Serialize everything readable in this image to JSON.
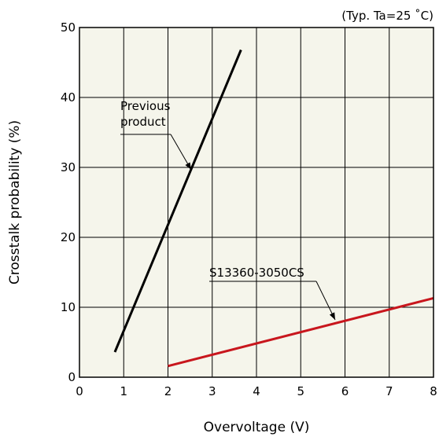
{
  "chart_data": {
    "type": "line",
    "note": "(Typ. Ta=25 ˚C)",
    "xlabel": "Overvoltage (V)",
    "ylabel": "Crosstalk probability (%)",
    "xlim": [
      0,
      8
    ],
    "ylim": [
      0,
      50
    ],
    "x_ticks": [
      "0",
      "1",
      "2",
      "3",
      "4",
      "5",
      "6",
      "7",
      "8"
    ],
    "y_ticks": [
      "0",
      "10",
      "20",
      "30",
      "40",
      "50"
    ],
    "grid": true,
    "background": "#f5f5eb",
    "series": [
      {
        "name": "Previous product",
        "annotation": [
          "Previous",
          "product"
        ],
        "color": "#000000",
        "x": [
          0.8,
          3.65
        ],
        "y": [
          3.6,
          46.8
        ]
      },
      {
        "name": "S13360-3050CS",
        "annotation": [
          "S13360-3050CS"
        ],
        "color": "#c8161d",
        "x": [
          2.0,
          8.0
        ],
        "y": [
          1.6,
          11.3
        ]
      }
    ]
  }
}
